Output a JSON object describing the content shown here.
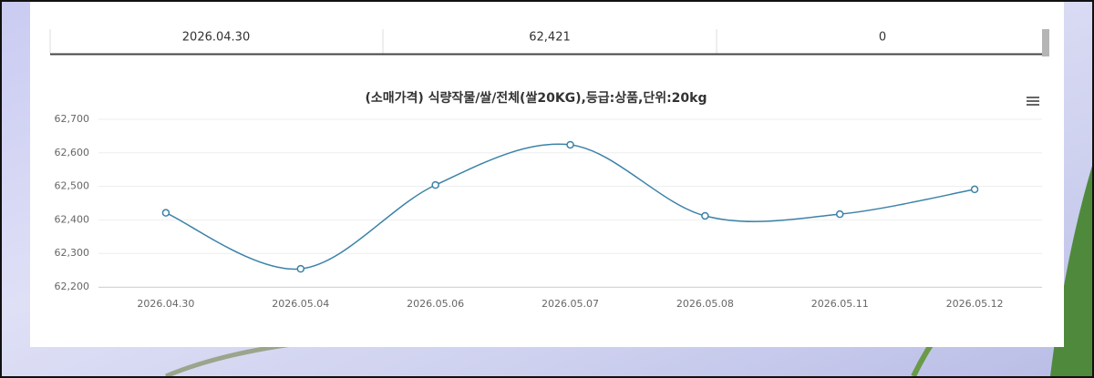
{
  "table": {
    "rows": [
      [
        "2026.04.30",
        "62,421",
        "0"
      ]
    ]
  },
  "chart_data": {
    "type": "line",
    "title": "(소매가격) 식량작물/쌀/전체(쌀20KG),등급:상품,단위:20kg",
    "categories": [
      "2026.04.30",
      "2026.05.04",
      "2026.05.06",
      "2026.05.07",
      "2026.05.08",
      "2026.05.11",
      "2026.05.12"
    ],
    "series": [
      {
        "color": "#3b82a8",
        "values": [
          62421,
          62254,
          62504,
          62624,
          62412,
          62417,
          62491
        ]
      }
    ],
    "ylim": [
      62200,
      62700
    ],
    "yticks": [
      {
        "value": 62200,
        "label": "62,200"
      },
      {
        "value": 62300,
        "label": "62,300"
      },
      {
        "value": 62400,
        "label": "62,400"
      },
      {
        "value": 62500,
        "label": "62,500"
      },
      {
        "value": 62600,
        "label": "62,600"
      },
      {
        "value": 62700,
        "label": "62,700"
      }
    ],
    "grid": true
  }
}
